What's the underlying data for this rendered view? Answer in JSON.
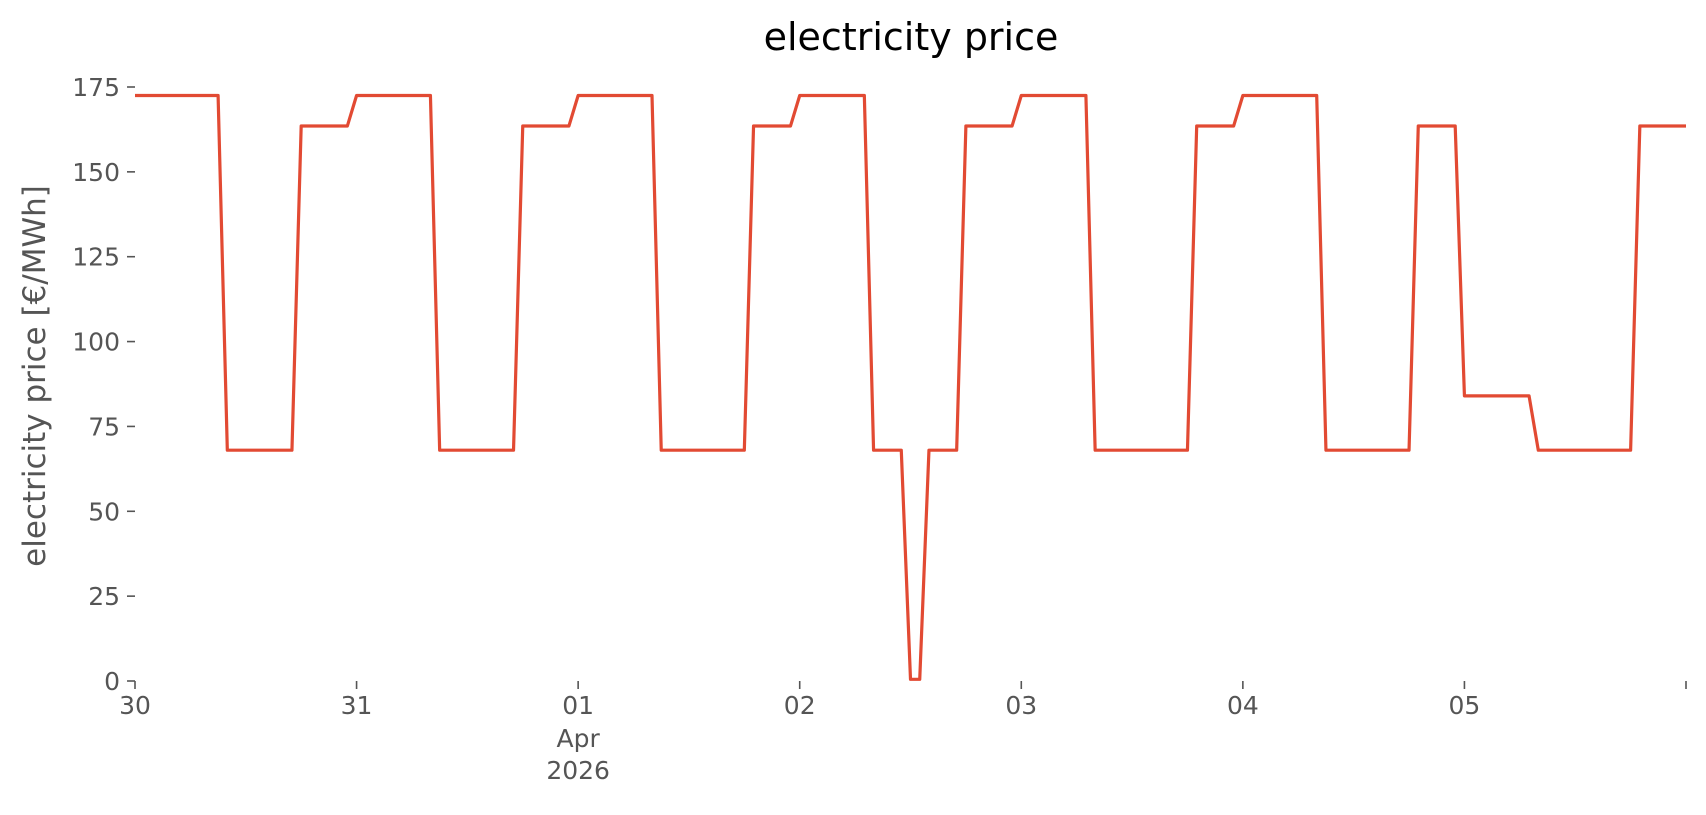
{
  "chart_data": {
    "type": "line",
    "title": "electricity price",
    "xlabel": "",
    "ylabel": "electricity price [€/MWh]",
    "grid": false,
    "legend": "none",
    "x_unit": "date-time",
    "xlim": [
      "2026-03-30T00:00",
      "2026-04-06T00:00"
    ],
    "ylim": [
      0,
      175
    ],
    "x_ticks": [
      {
        "value": "2026-03-30T00:00",
        "label": "30",
        "label2": ""
      },
      {
        "value": "2026-03-31T00:00",
        "label": "31",
        "label2": ""
      },
      {
        "value": "2026-04-01T00:00",
        "label": "01",
        "label2": "Apr\n2026"
      },
      {
        "value": "2026-04-02T00:00",
        "label": "02",
        "label2": ""
      },
      {
        "value": "2026-04-03T00:00",
        "label": "03",
        "label2": ""
      },
      {
        "value": "2026-04-04T00:00",
        "label": "04",
        "label2": ""
      },
      {
        "value": "2026-04-05T00:00",
        "label": "05",
        "label2": ""
      },
      {
        "value": "2026-04-06T00:00",
        "label": "",
        "label2": ""
      }
    ],
    "y_ticks": [
      {
        "value": 0,
        "label": "0"
      },
      {
        "value": 25,
        "label": "25"
      },
      {
        "value": 50,
        "label": "50"
      },
      {
        "value": 75,
        "label": "75"
      },
      {
        "value": 100,
        "label": "100"
      },
      {
        "value": 125,
        "label": "125"
      },
      {
        "value": 150,
        "label": "150"
      },
      {
        "value": 175,
        "label": "175"
      }
    ],
    "series": [
      {
        "color": "#E24A33",
        "points": [
          [
            "2026-03-30T00:00",
            172.5
          ],
          [
            "2026-03-30T09:00",
            172.5
          ],
          [
            "2026-03-30T10:00",
            68.0
          ],
          [
            "2026-03-30T17:00",
            68.0
          ],
          [
            "2026-03-30T18:00",
            163.5
          ],
          [
            "2026-03-30T23:00",
            163.5
          ],
          [
            "2026-03-31T00:00",
            172.5
          ],
          [
            "2026-03-31T08:00",
            172.5
          ],
          [
            "2026-03-31T09:00",
            68.0
          ],
          [
            "2026-03-31T17:00",
            68.0
          ],
          [
            "2026-03-31T18:00",
            163.5
          ],
          [
            "2026-03-31T23:00",
            163.5
          ],
          [
            "2026-04-01T00:00",
            172.5
          ],
          [
            "2026-04-01T08:00",
            172.5
          ],
          [
            "2026-04-01T09:00",
            68.0
          ],
          [
            "2026-04-01T18:00",
            68.0
          ],
          [
            "2026-04-01T19:00",
            163.5
          ],
          [
            "2026-04-01T23:00",
            163.5
          ],
          [
            "2026-04-02T00:00",
            172.5
          ],
          [
            "2026-04-02T07:00",
            172.5
          ],
          [
            "2026-04-02T08:00",
            68.0
          ],
          [
            "2026-04-02T11:00",
            68.0
          ],
          [
            "2026-04-02T12:00",
            0.5
          ],
          [
            "2026-04-02T13:00",
            0.5
          ],
          [
            "2026-04-02T14:00",
            68.0
          ],
          [
            "2026-04-02T17:00",
            68.0
          ],
          [
            "2026-04-02T18:00",
            163.5
          ],
          [
            "2026-04-02T23:00",
            163.5
          ],
          [
            "2026-04-03T00:00",
            172.5
          ],
          [
            "2026-04-03T07:00",
            172.5
          ],
          [
            "2026-04-03T08:00",
            68.0
          ],
          [
            "2026-04-03T18:00",
            68.0
          ],
          [
            "2026-04-03T19:00",
            163.5
          ],
          [
            "2026-04-03T23:00",
            163.5
          ],
          [
            "2026-04-04T00:00",
            172.5
          ],
          [
            "2026-04-04T08:00",
            172.5
          ],
          [
            "2026-04-04T09:00",
            68.0
          ],
          [
            "2026-04-04T18:00",
            68.0
          ],
          [
            "2026-04-04T19:00",
            163.5
          ],
          [
            "2026-04-04T23:00",
            163.5
          ],
          [
            "2026-04-05T00:00",
            84.0
          ],
          [
            "2026-04-05T07:00",
            84.0
          ],
          [
            "2026-04-05T08:00",
            68.0
          ],
          [
            "2026-04-05T18:00",
            68.0
          ],
          [
            "2026-04-05T19:00",
            163.5
          ],
          [
            "2026-04-06T00:00",
            163.5
          ]
        ]
      }
    ]
  }
}
